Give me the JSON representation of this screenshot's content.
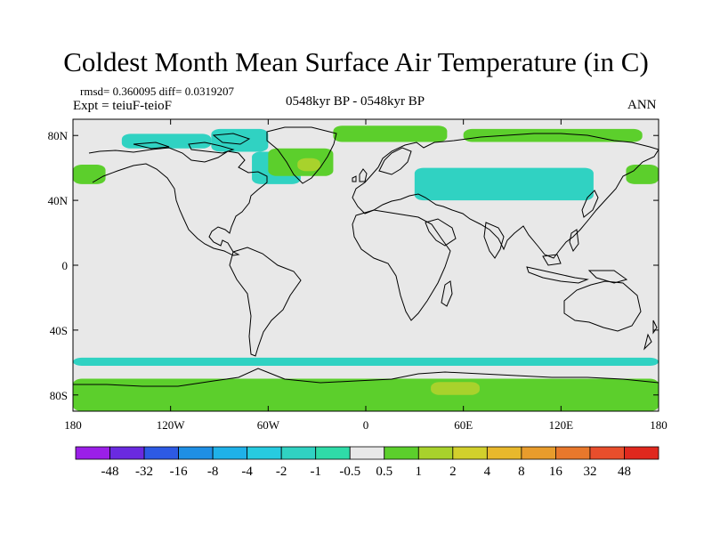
{
  "title": "Coldest Month Mean Surface Air Temperature (in C)",
  "stats_text": "rmsd= 0.360095 diff= 0.0319207",
  "experiment_text": "Expt = teiuF-teioF",
  "period_text": "0548kyr BP - 0548kyr BP",
  "season_text": "ANN",
  "map": {
    "type": "heatmap",
    "projection": "cylindrical-equidistant",
    "lon_range": [
      -180,
      180
    ],
    "lat_range": [
      -90,
      90
    ],
    "background_color": "#e8e8e8",
    "x_ticks": [
      {
        "value": -180,
        "label": "180"
      },
      {
        "value": -120,
        "label": "120W"
      },
      {
        "value": -60,
        "label": "60W"
      },
      {
        "value": 0,
        "label": "0"
      },
      {
        "value": 60,
        "label": "60E"
      },
      {
        "value": 120,
        "label": "120E"
      },
      {
        "value": 180,
        "label": "180"
      }
    ],
    "y_ticks": [
      {
        "value": 80,
        "label": "80N"
      },
      {
        "value": 40,
        "label": "40N"
      },
      {
        "value": 0,
        "label": "0"
      },
      {
        "value": -40,
        "label": "40S"
      },
      {
        "value": -80,
        "label": "80S"
      }
    ],
    "anomaly_regions": [
      {
        "level": "-0.5 to -1",
        "color": "#30d2c2",
        "lon": [
          -150,
          -95
        ],
        "lat": [
          72,
          81
        ],
        "note": "Canadian Arctic"
      },
      {
        "level": "-0.5 to -1",
        "color": "#30d2c2",
        "lon": [
          -95,
          -60
        ],
        "lat": [
          70,
          84
        ],
        "note": "Arctic archipelago / Greenland N"
      },
      {
        "level": "-0.5 to -1",
        "color": "#30d2c2",
        "lon": [
          -70,
          -40
        ],
        "lat": [
          50,
          70
        ],
        "note": "Labrador Sea"
      },
      {
        "level": "0.5 to 1",
        "color": "#5ccf2c",
        "lon": [
          -60,
          -20
        ],
        "lat": [
          55,
          72
        ],
        "note": "Greenland / N Atlantic"
      },
      {
        "level": "1 to 2",
        "color": "#a8d22c",
        "lon": [
          -42,
          -28
        ],
        "lat": [
          58,
          66
        ],
        "note": "Irminger Sea"
      },
      {
        "level": "0.5 to 1",
        "color": "#5ccf2c",
        "lon": [
          -180,
          -160
        ],
        "lat": [
          50,
          62
        ],
        "note": "Bering region W"
      },
      {
        "level": "0.5 to 1",
        "color": "#5ccf2c",
        "lon": [
          160,
          180
        ],
        "lat": [
          50,
          62
        ],
        "note": "Kamchatka / Bering"
      },
      {
        "level": "-0.5 to -1",
        "color": "#30d2c2",
        "lon": [
          30,
          140
        ],
        "lat": [
          40,
          60
        ],
        "note": "Siberia / Central Asia"
      },
      {
        "level": "0.5 to 1",
        "color": "#5ccf2c",
        "lon": [
          -20,
          50
        ],
        "lat": [
          76,
          86
        ],
        "note": "Arctic Ocean Atlantic sector"
      },
      {
        "level": "0.5 to 1",
        "color": "#5ccf2c",
        "lon": [
          60,
          170
        ],
        "lat": [
          76,
          84
        ],
        "note": "Arctic Ocean Siberian sector"
      },
      {
        "level": "-0.5 to -1",
        "color": "#30d2c2",
        "lon": [
          -180,
          180
        ],
        "lat": [
          -62,
          -57
        ],
        "note": "Southern Ocean band"
      },
      {
        "level": "0.5 to 1",
        "color": "#5ccf2c",
        "lon": [
          -180,
          180
        ],
        "lat": [
          -90,
          -70
        ],
        "note": "Antarctica"
      },
      {
        "level": "1 to 2",
        "color": "#a8d22c",
        "lon": [
          40,
          70
        ],
        "lat": [
          -80,
          -72
        ],
        "note": "East Antarctica"
      }
    ]
  },
  "colorbar": {
    "colors": [
      "#9b1fe8",
      "#6a2ae0",
      "#2d5ae4",
      "#1f8fe4",
      "#1fb1e8",
      "#27cbe0",
      "#30d2c2",
      "#2fdba8",
      "#e8e8e8",
      "#5ccf2c",
      "#a8d22c",
      "#d2d02c",
      "#e8b82c",
      "#e89c2c",
      "#e8782c",
      "#e84e2c",
      "#e0281e"
    ],
    "labels": [
      "-48",
      "-32",
      "-16",
      "-8",
      "-4",
      "-2",
      "-1",
      "-0.5",
      "0.5",
      "1",
      "2",
      "4",
      "8",
      "16",
      "32",
      "48"
    ]
  }
}
